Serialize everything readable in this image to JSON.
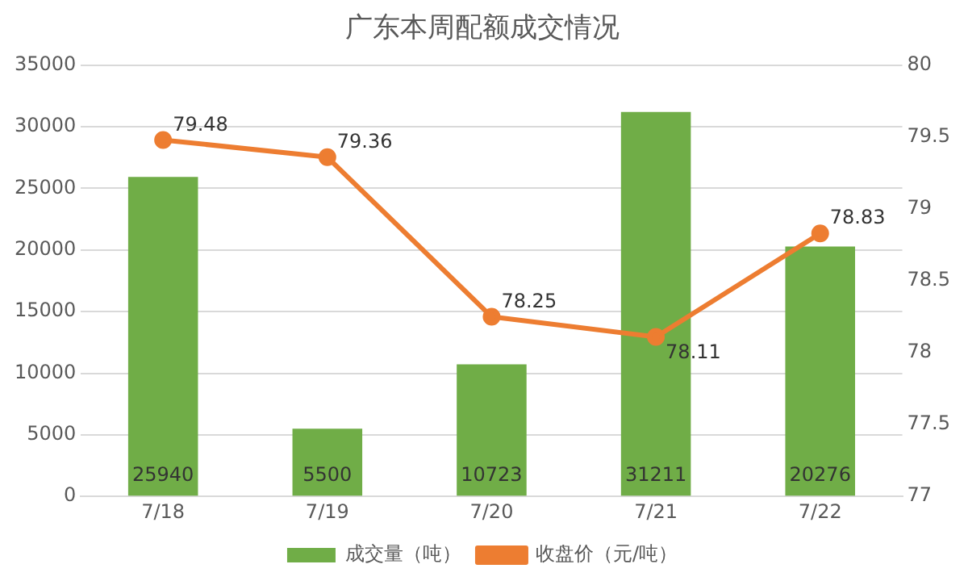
{
  "chart_data": {
    "type": "bar",
    "title": "广东本周配额成交情况",
    "categories": [
      "7/18",
      "7/19",
      "7/20",
      "7/21",
      "7/22"
    ],
    "series": [
      {
        "name": "成交量（吨）",
        "color": "#70ad47",
        "values": [
          25940,
          5500,
          10723,
          31211,
          20276
        ]
      },
      {
        "name": "收盘价（元/吨）",
        "type": "line",
        "axis": "y2",
        "color": "#ed7d31",
        "values": [
          79.48,
          79.36,
          78.25,
          78.11,
          78.83
        ]
      }
    ],
    "ylim": [
      0,
      35000
    ],
    "yticks": [
      0,
      5000,
      10000,
      15000,
      20000,
      25000,
      30000,
      35000
    ],
    "y2lim": [
      77,
      80
    ],
    "y2ticks": [
      77,
      77.5,
      78,
      78.5,
      79,
      79.5,
      80
    ],
    "grid": "y",
    "legend": "bottom",
    "marker": "circle",
    "line_style": "solid",
    "data_labels": true
  }
}
